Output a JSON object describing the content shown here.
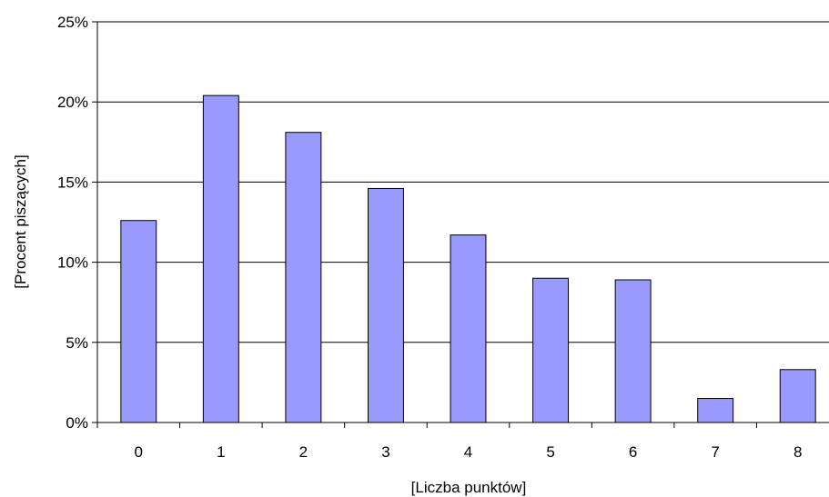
{
  "chart_data": {
    "type": "bar",
    "xlabel": "[Liczba punktów]",
    "ylabel": "[Procent piszących]",
    "categories": [
      "0",
      "1",
      "2",
      "3",
      "4",
      "5",
      "6",
      "7",
      "8"
    ],
    "values": [
      12.6,
      20.4,
      18.1,
      14.6,
      11.7,
      9.0,
      8.9,
      1.5,
      3.3
    ],
    "ylim": [
      0,
      25
    ],
    "yticks": [
      "0%",
      "5%",
      "10%",
      "15%",
      "20%",
      "25%"
    ],
    "grid": true,
    "legend": "none",
    "bar_color": "#9999ff"
  }
}
